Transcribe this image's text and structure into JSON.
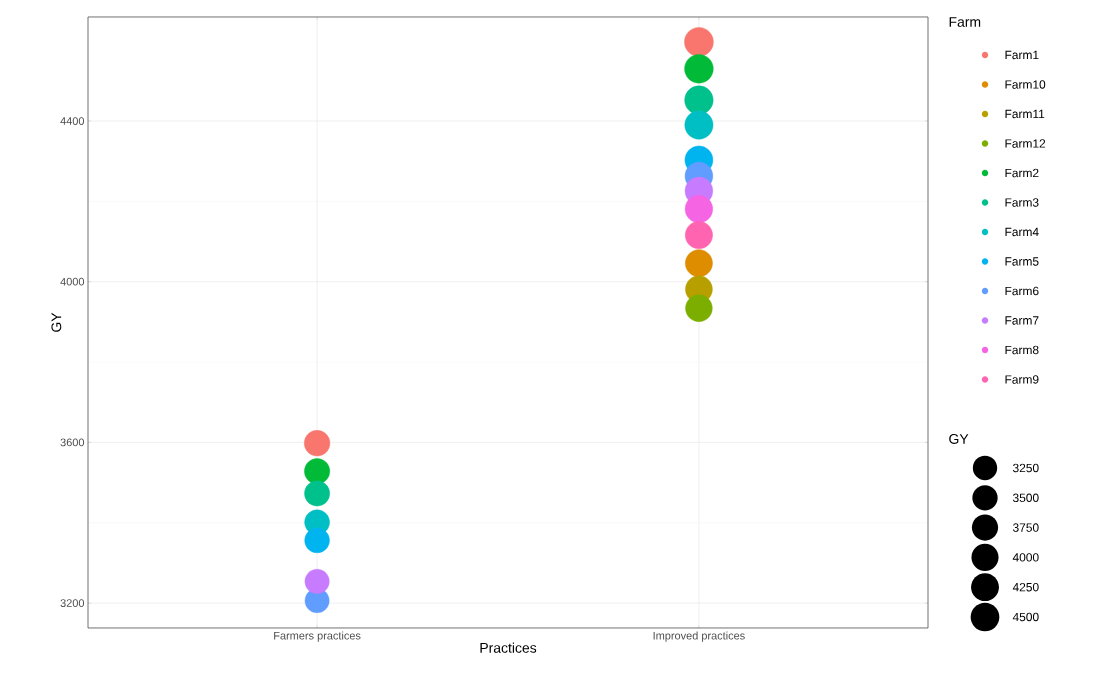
{
  "chart_data": {
    "type": "bubble",
    "categories": [
      "Farmers practices",
      "Improved practices"
    ],
    "xlabel": "Practices",
    "ylabel": "GY",
    "legend_title": "Farm",
    "annotations": [
      "GY"
    ],
    "ylim": [
      3138,
      4659
    ],
    "yticks": [
      3200,
      3600,
      4000,
      4400
    ],
    "grid": true,
    "legend": "right",
    "marker": "circle",
    "size_legend": [
      3250,
      3500,
      3750,
      4000,
      4250,
      4500
    ],
    "series": [
      {
        "name": "Farm1",
        "color": "#f8766d",
        "values": [
          3598,
          4597
        ],
        "sizes": [
          3598,
          4597
        ]
      },
      {
        "name": "Farm10",
        "color": "#de8c00",
        "values": [
          null,
          4046
        ],
        "sizes": [
          null,
          4046
        ]
      },
      {
        "name": "Farm11",
        "color": "#b79f00",
        "values": [
          null,
          3981
        ],
        "sizes": [
          null,
          3981
        ]
      },
      {
        "name": "Farm12",
        "color": "#7cae00",
        "values": [
          null,
          3934
        ],
        "sizes": [
          null,
          3934
        ]
      },
      {
        "name": "Farm2",
        "color": "#00ba38",
        "values": [
          3528,
          4530
        ],
        "sizes": [
          3528,
          4530
        ]
      },
      {
        "name": "Farm3",
        "color": "#00c08b",
        "values": [
          3473,
          4452
        ],
        "sizes": [
          3473,
          4452
        ]
      },
      {
        "name": "Farm4",
        "color": "#00bfc4",
        "values": [
          3401,
          4390
        ],
        "sizes": [
          3401,
          4390
        ]
      },
      {
        "name": "Farm5",
        "color": "#00b4f0",
        "values": [
          3356,
          4303
        ],
        "sizes": [
          3356,
          4303
        ]
      },
      {
        "name": "Farm6",
        "color": "#619cff",
        "values": [
          3206,
          4263
        ],
        "sizes": [
          3206,
          4263
        ]
      },
      {
        "name": "Farm7",
        "color": "#c77cff",
        "values": [
          3254,
          4226
        ],
        "sizes": [
          3254,
          4226
        ]
      },
      {
        "name": "Farm8",
        "color": "#f564e3",
        "values": [
          null,
          4181
        ],
        "sizes": [
          null,
          4181
        ]
      },
      {
        "name": "Farm9",
        "color": "#ff64b0",
        "values": [
          null,
          4116
        ],
        "sizes": [
          null,
          4116
        ]
      }
    ]
  }
}
